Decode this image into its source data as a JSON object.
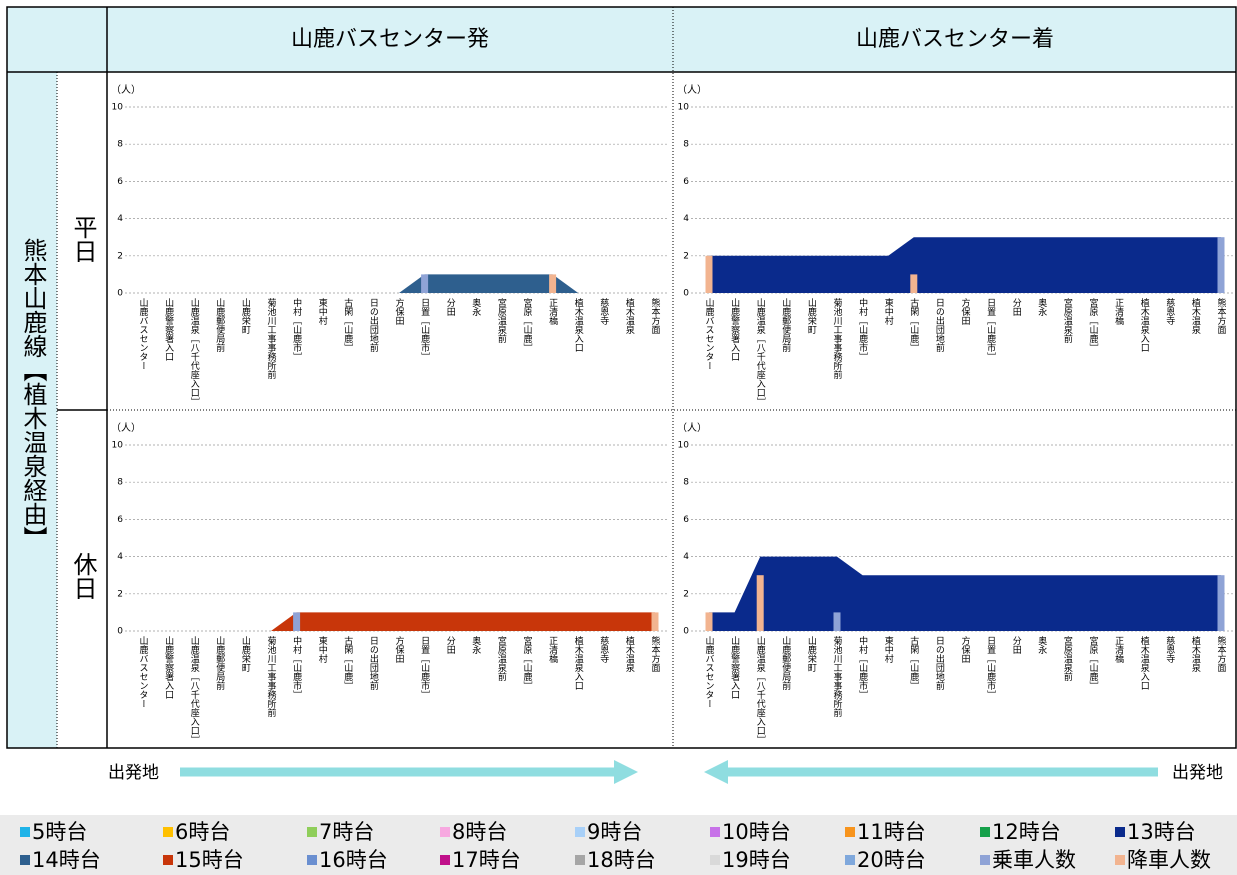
{
  "table": {
    "headers": [
      "山鹿バスセンター発",
      "山鹿バスセンター着"
    ],
    "route": "熊本山鹿線【植木温泉経由】",
    "rows": [
      "平日",
      "休日"
    ]
  },
  "chart_data": [
    {
      "type": "area",
      "y_label": "（人）",
      "ylim": [
        0,
        10
      ],
      "yticks": [
        0,
        2,
        4,
        6,
        8,
        10
      ],
      "grid": true,
      "categories": [
        "山鹿バスセンター",
        "山鹿警察署入口",
        "山鹿温泉［八千代座入口］",
        "山鹿郵便局前",
        "山鹿栄町",
        "菊池川工事事務所前",
        "中村［山鹿市］",
        "東中村",
        "古閑［山鹿］",
        "日の出団地前",
        "方保田",
        "日置［山鹿市］",
        "分田",
        "奥永",
        "宮原温泉前",
        "宮原［山鹿］",
        "正清橋",
        "植木温泉入口",
        "慈恩寺",
        "植木温泉",
        "熊本方面"
      ],
      "series": [
        {
          "type": "area",
          "color": "#2e5f8e",
          "values": [
            0,
            0,
            0,
            0,
            0,
            0,
            0,
            0,
            0,
            0,
            0,
            1,
            1,
            1,
            1,
            1,
            1,
            0,
            0,
            0,
            0
          ]
        },
        {
          "type": "bar",
          "color": "#8fa3d6",
          "values": [
            0,
            0,
            0,
            0,
            0,
            0,
            0,
            0,
            0,
            0,
            0,
            1,
            0,
            0,
            0,
            0,
            0,
            0,
            0,
            0,
            0
          ]
        },
        {
          "type": "bar",
          "color": "#f2b490",
          "values": [
            0,
            0,
            0,
            0,
            0,
            0,
            0,
            0,
            0,
            0,
            0,
            0,
            0,
            0,
            0,
            0,
            1,
            0,
            0,
            0,
            0
          ]
        }
      ]
    },
    {
      "type": "area",
      "y_label": "（人）",
      "ylim": [
        0,
        10
      ],
      "yticks": [
        0,
        2,
        4,
        6,
        8,
        10
      ],
      "grid": true,
      "categories": [
        "山鹿バスセンター",
        "山鹿警察署入口",
        "山鹿温泉［八千代座入口］",
        "山鹿郵便局前",
        "山鹿栄町",
        "菊池川工事事務所前",
        "中村［山鹿市］",
        "東中村",
        "古閑［山鹿］",
        "日の出団地前",
        "方保田",
        "日置［山鹿市］",
        "分田",
        "奥永",
        "宮原温泉前",
        "宮原［山鹿］",
        "正清橋",
        "植木温泉入口",
        "慈恩寺",
        "植木温泉",
        "熊本方面"
      ],
      "series": [
        {
          "type": "area",
          "color": "#0a2a8c",
          "values": [
            2,
            2,
            2,
            2,
            2,
            2,
            2,
            2,
            3,
            3,
            3,
            3,
            3,
            3,
            3,
            3,
            3,
            3,
            3,
            3,
            3
          ]
        },
        {
          "type": "bar",
          "color": "#8fa3d6",
          "values": [
            0,
            0,
            0,
            0,
            0,
            0,
            0,
            0,
            0,
            0,
            0,
            0,
            0,
            0,
            0,
            0,
            0,
            0,
            0,
            0,
            3
          ]
        },
        {
          "type": "bar",
          "color": "#f2b490",
          "values": [
            2,
            0,
            0,
            0,
            0,
            0,
            0,
            0,
            1,
            0,
            0,
            0,
            0,
            0,
            0,
            0,
            0,
            0,
            0,
            0,
            0
          ]
        }
      ]
    },
    {
      "type": "area",
      "y_label": "（人）",
      "ylim": [
        0,
        10
      ],
      "yticks": [
        0,
        2,
        4,
        6,
        8,
        10
      ],
      "grid": true,
      "categories": [
        "山鹿バスセンター",
        "山鹿警察署入口",
        "山鹿温泉［八千代座入口］",
        "山鹿郵便局前",
        "山鹿栄町",
        "菊池川工事事務所前",
        "中村［山鹿市］",
        "東中村",
        "古閑［山鹿］",
        "日の出団地前",
        "方保田",
        "日置［山鹿市］",
        "分田",
        "奥永",
        "宮原温泉前",
        "宮原［山鹿］",
        "正清橋",
        "植木温泉入口",
        "慈恩寺",
        "植木温泉",
        "熊本方面"
      ],
      "series": [
        {
          "type": "area",
          "color": "#c8360a",
          "values": [
            0,
            0,
            0,
            0,
            0,
            0,
            1,
            1,
            1,
            1,
            1,
            1,
            1,
            1,
            1,
            1,
            1,
            1,
            1,
            1,
            1
          ]
        },
        {
          "type": "bar",
          "color": "#8fa3d6",
          "values": [
            0,
            0,
            0,
            0,
            0,
            0,
            1,
            0,
            0,
            0,
            0,
            0,
            0,
            0,
            0,
            0,
            0,
            0,
            0,
            0,
            0
          ]
        },
        {
          "type": "bar",
          "color": "#f2b490",
          "values": [
            0,
            0,
            0,
            0,
            0,
            0,
            0,
            0,
            0,
            0,
            0,
            0,
            0,
            0,
            0,
            0,
            0,
            0,
            0,
            0,
            1
          ]
        }
      ]
    },
    {
      "type": "area",
      "y_label": "（人）",
      "ylim": [
        0,
        10
      ],
      "yticks": [
        0,
        2,
        4,
        6,
        8,
        10
      ],
      "grid": true,
      "categories": [
        "山鹿バスセンター",
        "山鹿警察署入口",
        "山鹿温泉［八千代座入口］",
        "山鹿郵便局前",
        "山鹿栄町",
        "菊池川工事事務所前",
        "中村［山鹿市］",
        "東中村",
        "古閑［山鹿］",
        "日の出団地前",
        "方保田",
        "日置［山鹿市］",
        "分田",
        "奥永",
        "宮原温泉前",
        "宮原［山鹿］",
        "正清橋",
        "植木温泉入口",
        "慈恩寺",
        "植木温泉",
        "熊本方面"
      ],
      "series": [
        {
          "type": "area",
          "color": "#0a2a8c",
          "values": [
            1,
            1,
            4,
            4,
            4,
            4,
            3,
            3,
            3,
            3,
            3,
            3,
            3,
            3,
            3,
            3,
            3,
            3,
            3,
            3,
            3
          ]
        },
        {
          "type": "bar",
          "color": "#8fa3d6",
          "values": [
            0,
            0,
            0,
            0,
            0,
            1,
            0,
            0,
            0,
            0,
            0,
            0,
            0,
            0,
            0,
            0,
            0,
            0,
            0,
            0,
            3
          ]
        },
        {
          "type": "bar",
          "color": "#f2b490",
          "values": [
            1,
            0,
            3,
            0,
            0,
            0,
            0,
            0,
            0,
            0,
            0,
            0,
            0,
            0,
            0,
            0,
            0,
            0,
            0,
            0,
            0
          ]
        }
      ]
    }
  ],
  "direction_labels": [
    "出発地",
    "出発地"
  ],
  "legend": [
    {
      "name": "5時台",
      "color": "#1fb3e8"
    },
    {
      "name": "6時台",
      "color": "#ffc000"
    },
    {
      "name": "7時台",
      "color": "#8fce5a"
    },
    {
      "name": "8時台",
      "color": "#f7a8e0"
    },
    {
      "name": "9時台",
      "color": "#a8d0f8"
    },
    {
      "name": "10時台",
      "color": "#c772e8"
    },
    {
      "name": "11時台",
      "color": "#f7941d"
    },
    {
      "name": "12時台",
      "color": "#15a04a"
    },
    {
      "name": "13時台",
      "color": "#0a2a8c"
    },
    {
      "name": "14時台",
      "color": "#2e5f8e"
    },
    {
      "name": "15時台",
      "color": "#c8360a"
    },
    {
      "name": "16時台",
      "color": "#6a8fd0"
    },
    {
      "name": "17時台",
      "color": "#c0108a"
    },
    {
      "name": "18時台",
      "color": "#a6a6a6"
    },
    {
      "name": "19時台",
      "color": "#d9d9d9"
    },
    {
      "name": "20時台",
      "color": "#7fa8dc"
    },
    {
      "name": "乗車人数",
      "color": "#8fa3d6"
    },
    {
      "name": "降車人数",
      "color": "#f2b490"
    }
  ]
}
